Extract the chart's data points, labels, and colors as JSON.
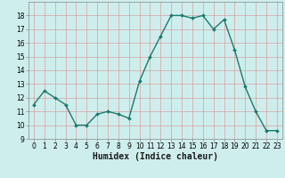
{
  "x": [
    0,
    1,
    2,
    3,
    4,
    5,
    6,
    7,
    8,
    9,
    10,
    11,
    12,
    13,
    14,
    15,
    16,
    17,
    18,
    19,
    20,
    21,
    22,
    23
  ],
  "y": [
    11.5,
    12.5,
    12.0,
    11.5,
    10.0,
    10.0,
    10.8,
    11.0,
    10.8,
    10.5,
    13.2,
    15.0,
    16.5,
    18.0,
    18.0,
    17.8,
    18.0,
    17.0,
    17.7,
    15.5,
    12.8,
    11.0,
    9.6,
    9.6
  ],
  "line_color": "#1a7a6e",
  "marker": "D",
  "marker_size": 2.0,
  "line_width": 1.0,
  "bg_color": "#ceeeed",
  "grid_color_major": "#d8a0a0",
  "grid_color_minor": "#d8a0a0",
  "xlabel": "Humidex (Indice chaleur)",
  "ylim": [
    9,
    19
  ],
  "xlim": [
    -0.5,
    23.5
  ],
  "yticks": [
    9,
    10,
    11,
    12,
    13,
    14,
    15,
    16,
    17,
    18
  ],
  "xticks": [
    0,
    1,
    2,
    3,
    4,
    5,
    6,
    7,
    8,
    9,
    10,
    11,
    12,
    13,
    14,
    15,
    16,
    17,
    18,
    19,
    20,
    21,
    22,
    23
  ],
  "tick_fontsize": 5.5,
  "xlabel_fontsize": 7.0,
  "spine_color": "#888888"
}
